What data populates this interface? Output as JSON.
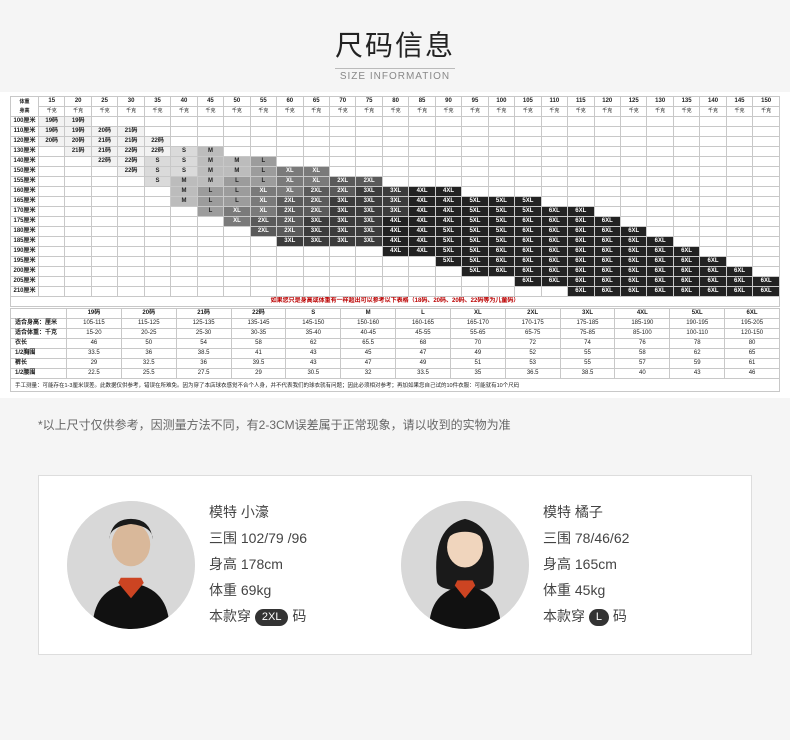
{
  "header": {
    "title": "尺码信息",
    "subtitle": "SIZE INFORMATION"
  },
  "chart": {
    "corner_top": "体重",
    "corner_bottom": "身高",
    "weight_cols": [
      15,
      20,
      25,
      30,
      35,
      40,
      45,
      50,
      55,
      60,
      65,
      70,
      75,
      80,
      85,
      90,
      95,
      100,
      105,
      110,
      115,
      120,
      125,
      130,
      135,
      140,
      145,
      150
    ],
    "weight_unit": "千克",
    "height_rows": [
      100,
      110,
      120,
      130,
      140,
      150,
      155,
      160,
      165,
      170,
      175,
      180,
      185,
      190,
      195,
      200,
      205,
      210
    ],
    "height_unit": "厘米",
    "cell_shades": [
      "#f2f2f2",
      "#dadada",
      "#bcbcbc",
      "#9c9c9c",
      "#7a7a7a",
      "#5a5a5a",
      "#3c3c3c",
      "#222222"
    ],
    "cell_text_light": "#ffffff",
    "cell_text_dark": "#222222",
    "grid": [
      [
        "19码",
        "19码",
        "",
        "",
        "",
        "",
        "",
        "",
        "",
        "",
        "",
        "",
        "",
        "",
        "",
        "",
        "",
        "",
        "",
        "",
        "",
        "",
        "",
        "",
        "",
        "",
        "",
        ""
      ],
      [
        "19码",
        "19码",
        "20码",
        "21码",
        "",
        "",
        "",
        "",
        "",
        "",
        "",
        "",
        "",
        "",
        "",
        "",
        "",
        "",
        "",
        "",
        "",
        "",
        "",
        "",
        "",
        "",
        "",
        ""
      ],
      [
        "20码",
        "20码",
        "21码",
        "21码",
        "22码",
        "",
        "",
        "",
        "",
        "",
        "",
        "",
        "",
        "",
        "",
        "",
        "",
        "",
        "",
        "",
        "",
        "",
        "",
        "",
        "",
        "",
        "",
        ""
      ],
      [
        "",
        "21码",
        "21码",
        "22码",
        "22码",
        "S",
        "M",
        "",
        "",
        "",
        "",
        "",
        "",
        "",
        "",
        "",
        "",
        "",
        "",
        "",
        "",
        "",
        "",
        "",
        "",
        "",
        "",
        ""
      ],
      [
        "",
        "",
        "22码",
        "22码",
        "S",
        "S",
        "M",
        "M",
        "L",
        "",
        "",
        "",
        "",
        "",
        "",
        "",
        "",
        "",
        "",
        "",
        "",
        "",
        "",
        "",
        "",
        "",
        "",
        ""
      ],
      [
        "",
        "",
        "",
        "22码",
        "S",
        "S",
        "M",
        "M",
        "L",
        "XL",
        "XL",
        "",
        "",
        "",
        "",
        "",
        "",
        "",
        "",
        "",
        "",
        "",
        "",
        "",
        "",
        "",
        "",
        ""
      ],
      [
        "",
        "",
        "",
        "",
        "S",
        "M",
        "M",
        "L",
        "L",
        "XL",
        "XL",
        "2XL",
        "2XL",
        "",
        "",
        "",
        "",
        "",
        "",
        "",
        "",
        "",
        "",
        "",
        "",
        "",
        "",
        ""
      ],
      [
        "",
        "",
        "",
        "",
        "",
        "M",
        "L",
        "L",
        "XL",
        "XL",
        "2XL",
        "2XL",
        "3XL",
        "3XL",
        "4XL",
        "4XL",
        "",
        "",
        "",
        "",
        "",
        "",
        "",
        "",
        "",
        "",
        "",
        ""
      ],
      [
        "",
        "",
        "",
        "",
        "",
        "M",
        "L",
        "L",
        "XL",
        "2XL",
        "2XL",
        "3XL",
        "3XL",
        "3XL",
        "4XL",
        "4XL",
        "5XL",
        "5XL",
        "5XL",
        "",
        "",
        "",
        "",
        "",
        "",
        "",
        "",
        ""
      ],
      [
        "",
        "",
        "",
        "",
        "",
        "",
        "L",
        "XL",
        "XL",
        "2XL",
        "2XL",
        "3XL",
        "3XL",
        "3XL",
        "4XL",
        "4XL",
        "5XL",
        "5XL",
        "5XL",
        "6XL",
        "6XL",
        "",
        "",
        "",
        "",
        "",
        "",
        ""
      ],
      [
        "",
        "",
        "",
        "",
        "",
        "",
        "",
        "XL",
        "2XL",
        "2XL",
        "3XL",
        "3XL",
        "3XL",
        "4XL",
        "4XL",
        "4XL",
        "5XL",
        "5XL",
        "6XL",
        "6XL",
        "6XL",
        "6XL",
        "",
        "",
        "",
        "",
        "",
        ""
      ],
      [
        "",
        "",
        "",
        "",
        "",
        "",
        "",
        "",
        "2XL",
        "2XL",
        "3XL",
        "3XL",
        "3XL",
        "4XL",
        "4XL",
        "5XL",
        "5XL",
        "5XL",
        "6XL",
        "6XL",
        "6XL",
        "6XL",
        "6XL",
        "",
        "",
        "",
        "",
        ""
      ],
      [
        "",
        "",
        "",
        "",
        "",
        "",
        "",
        "",
        "",
        "3XL",
        "3XL",
        "3XL",
        "3XL",
        "4XL",
        "4XL",
        "5XL",
        "5XL",
        "5XL",
        "6XL",
        "6XL",
        "6XL",
        "6XL",
        "6XL",
        "6XL",
        "",
        "",
        "",
        ""
      ],
      [
        "",
        "",
        "",
        "",
        "",
        "",
        "",
        "",
        "",
        "",
        "",
        "",
        "",
        "4XL",
        "4XL",
        "5XL",
        "5XL",
        "6XL",
        "6XL",
        "6XL",
        "6XL",
        "6XL",
        "6XL",
        "6XL",
        "6XL",
        "",
        "",
        ""
      ],
      [
        "",
        "",
        "",
        "",
        "",
        "",
        "",
        "",
        "",
        "",
        "",
        "",
        "",
        "",
        "",
        "5XL",
        "5XL",
        "6XL",
        "6XL",
        "6XL",
        "6XL",
        "6XL",
        "6XL",
        "6XL",
        "6XL",
        "6XL",
        "",
        ""
      ],
      [
        "",
        "",
        "",
        "",
        "",
        "",
        "",
        "",
        "",
        "",
        "",
        "",
        "",
        "",
        "",
        "",
        "5XL",
        "6XL",
        "6XL",
        "6XL",
        "6XL",
        "6XL",
        "6XL",
        "6XL",
        "6XL",
        "6XL",
        "6XL",
        ""
      ],
      [
        "",
        "",
        "",
        "",
        "",
        "",
        "",
        "",
        "",
        "",
        "",
        "",
        "",
        "",
        "",
        "",
        "",
        "",
        "6XL",
        "6XL",
        "6XL",
        "6XL",
        "6XL",
        "6XL",
        "6XL",
        "6XL",
        "6XL",
        "6XL"
      ],
      [
        "",
        "",
        "",
        "",
        "",
        "",
        "",
        "",
        "",
        "",
        "",
        "",
        "",
        "",
        "",
        "",
        "",
        "",
        "",
        "",
        "6XL",
        "6XL",
        "6XL",
        "6XL",
        "6XL",
        "6XL",
        "6XL",
        "6XL"
      ]
    ],
    "note_line": "如果您只是身高或体重有一样超出可以参考以下表格（18码、20码、20码、22码等为儿童码）",
    "measure_rows": [
      {
        "label": "适合身高：厘米",
        "vals": [
          "105-115",
          "115-125",
          "125-135",
          "135-145",
          "145-150",
          "150-160",
          "160-165",
          "165-170",
          "170-175",
          "175-185",
          "185-190",
          "190-195",
          "195-205"
        ]
      },
      {
        "label": "适合体重：千克",
        "vals": [
          "15-20",
          "20-25",
          "25-30",
          "30-35",
          "35-40",
          "40-45",
          "45-55",
          "55-65",
          "65-75",
          "75-85",
          "85-100",
          "100-110",
          "120-150"
        ]
      },
      {
        "label": "衣长",
        "vals": [
          "46",
          "50",
          "54",
          "58",
          "62",
          "65.5",
          "68",
          "70",
          "72",
          "74",
          "76",
          "78",
          "80"
        ]
      },
      {
        "label": "1/2胸围",
        "vals": [
          "33.5",
          "36",
          "38.5",
          "41",
          "43",
          "45",
          "47",
          "49",
          "52",
          "55",
          "58",
          "62",
          "65"
        ]
      },
      {
        "label": "裤长",
        "vals": [
          "29",
          "32.5",
          "36",
          "39.5",
          "43",
          "47",
          "49",
          "51",
          "53",
          "55",
          "57",
          "59",
          "61"
        ]
      },
      {
        "label": "1/2腰围",
        "vals": [
          "22.5",
          "25.5",
          "27.5",
          "29",
          "30.5",
          "32",
          "33.5",
          "35",
          "36.5",
          "38.5",
          "40",
          "43",
          "46"
        ]
      }
    ],
    "measure_headers": [
      "19码",
      "20码",
      "21码",
      "22码",
      "S",
      "M",
      "L",
      "XL",
      "2XL",
      "3XL",
      "4XL",
      "5XL",
      "6XL"
    ],
    "measure_footnote": "手工测量：可能存在1-3厘米误差。此数据仅供参考，错误在所难免。因为穿了本店球衣感觉不合个人身，并不代表我们的球衣就有问题；因此必须相对参考；再加如果您自己试的10件衣服：可能就有10个尺码"
  },
  "disclaimer": "*以上尺寸仅供参考，因测量方法不同，有2-3CM误差属于正常现象，请以收到的实物为准",
  "models": [
    {
      "name_label": "模特 小濠",
      "bwh_label": "三围 102/79 /96",
      "height_label": "身高 178cm",
      "weight_label": "体重 69kg",
      "wears_prefix": "本款穿",
      "wears_size": "2XL",
      "wears_suffix": " 码"
    },
    {
      "name_label": "模特 橘子",
      "bwh_label": "三围 78/46/62",
      "height_label": "身高 165cm",
      "weight_label": "体重 45kg",
      "wears_prefix": "本款穿",
      "wears_size": "L",
      "wears_suffix": " 码"
    }
  ]
}
